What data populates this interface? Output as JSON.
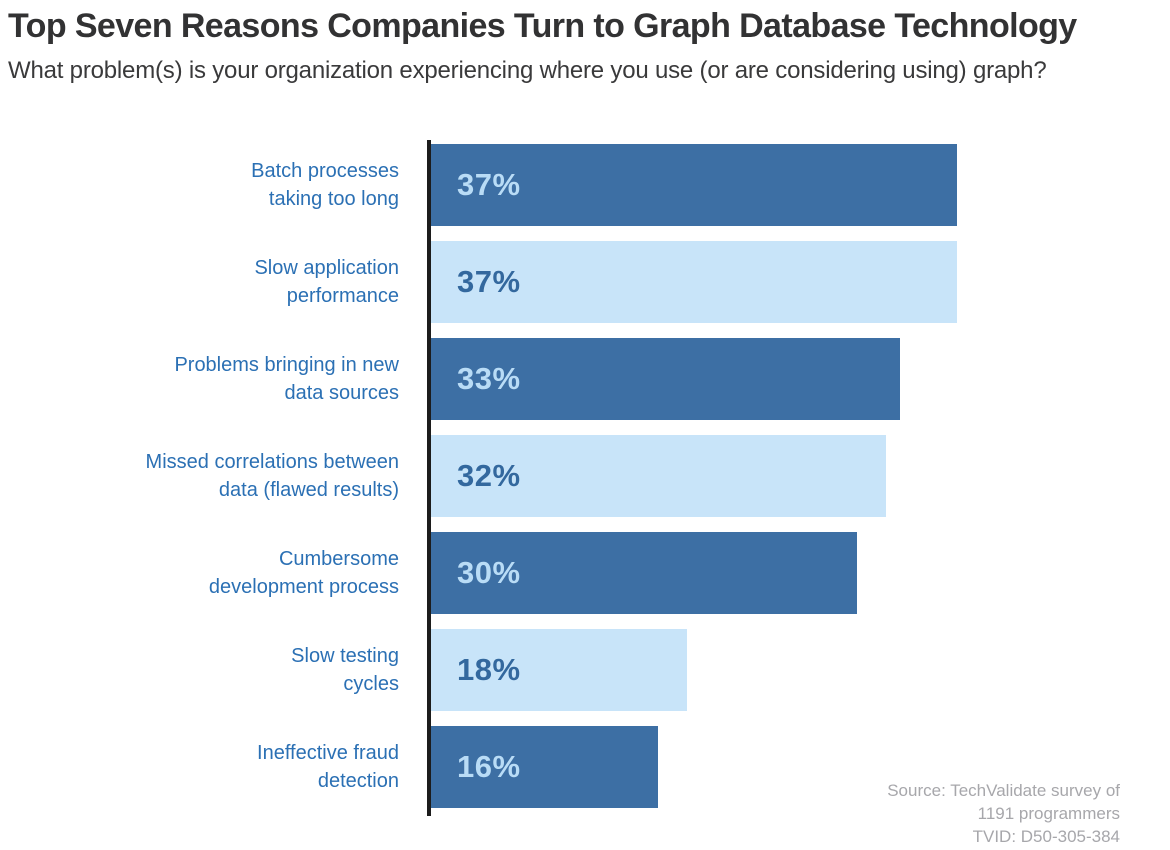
{
  "header": {
    "title": "Top Seven Reasons Companies Turn to Graph Database Technology",
    "subtitle": "What problem(s) is your organization experiencing where you use (or are considering using) graph?"
  },
  "chart_data": {
    "type": "bar",
    "orientation": "horizontal",
    "title": "Top Seven Reasons Companies Turn to Graph Database Technology",
    "subtitle": "What problem(s) is your organization experiencing where you use (or are considering using) graph?",
    "categories": [
      "Batch processes\ntaking too long",
      "Slow application\nperformance",
      "Problems bringing in new\ndata sources",
      "Missed correlations between\ndata (flawed results)",
      "Cumbersome\ndevelopment process",
      "Slow testing\ncycles",
      "Ineffective fraud\ndetection"
    ],
    "values": [
      37,
      37,
      33,
      32,
      30,
      18,
      16
    ],
    "value_labels": [
      "37%",
      "37%",
      "33%",
      "32%",
      "30%",
      "18%",
      "16%"
    ],
    "xlim": [
      0,
      52
    ],
    "grid": false,
    "legend": false,
    "bar_color_pattern": [
      "#3d6fa4",
      "#c8e4f9"
    ],
    "value_label_color_pattern": [
      "#b9dcf6",
      "#33689e"
    ],
    "category_label_color": "#2b70b4",
    "axis_color": "#1c1c1c"
  },
  "source": {
    "lines": [
      "Source: TechValidate survey of",
      "1191 programmers",
      "TVID: D50-305-384"
    ],
    "color": "#a7a7ab"
  },
  "colors": {
    "title_text": "#323233",
    "subtitle_text": "#3a3a3b",
    "background": "#ffffff"
  }
}
